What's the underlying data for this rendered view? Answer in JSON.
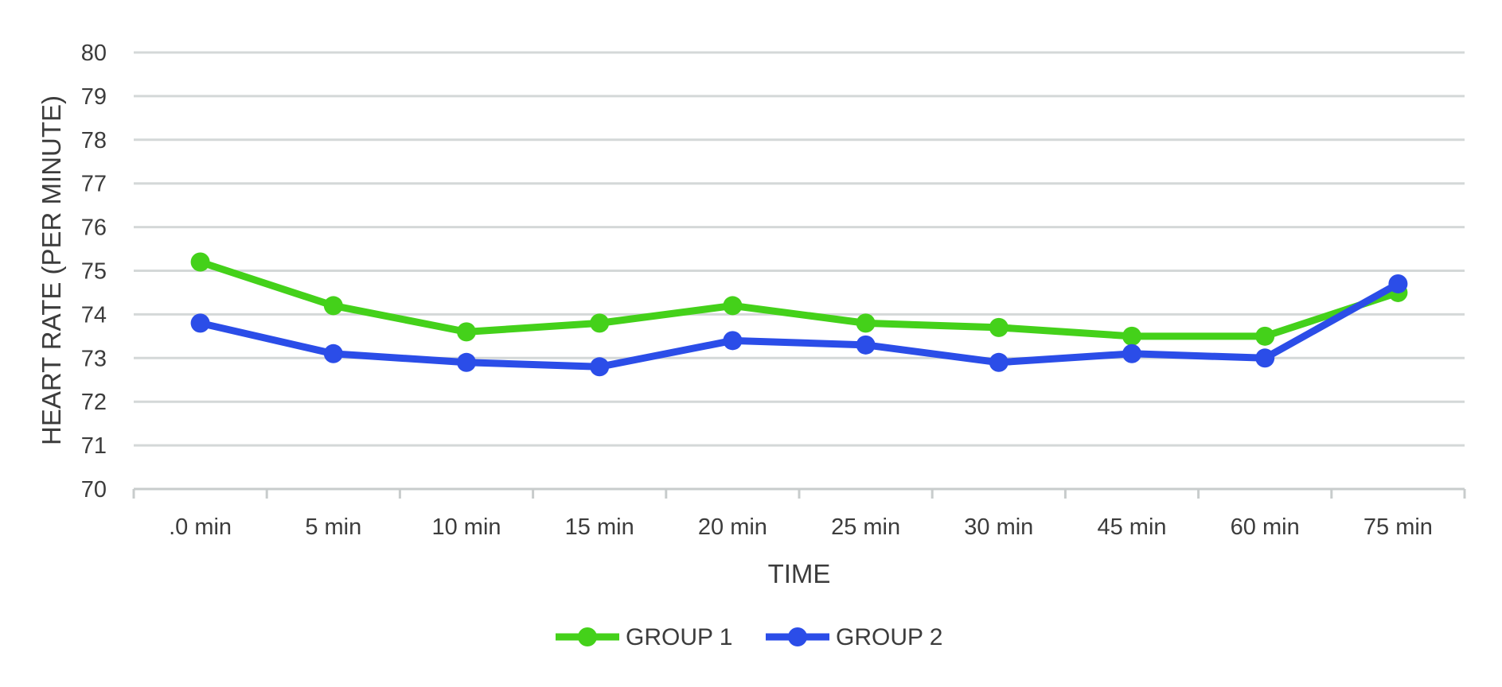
{
  "chart_data": {
    "type": "line",
    "xlabel": "TIME",
    "ylabel": "HEART RATE (PER MINUTE)",
    "ylim": [
      70,
      80
    ],
    "yticks": [
      70,
      71,
      72,
      73,
      74,
      75,
      76,
      77,
      78,
      79,
      80
    ],
    "grid": true,
    "legend_position": "bottom",
    "categories": [
      ".0 min",
      "5 min",
      "10 min",
      "15 min",
      "20 min",
      "25 min",
      "30 min",
      "45 min",
      "60 min",
      "75 min"
    ],
    "series": [
      {
        "name": "GROUP 1",
        "color": "#44d11a",
        "values": [
          75.2,
          74.2,
          73.6,
          73.8,
          74.2,
          73.8,
          73.7,
          73.5,
          73.5,
          74.5
        ]
      },
      {
        "name": "GROUP 2",
        "color": "#2b4de8",
        "values": [
          73.8,
          73.1,
          72.9,
          72.8,
          73.4,
          73.3,
          72.9,
          73.1,
          73.0,
          74.7
        ]
      }
    ]
  }
}
